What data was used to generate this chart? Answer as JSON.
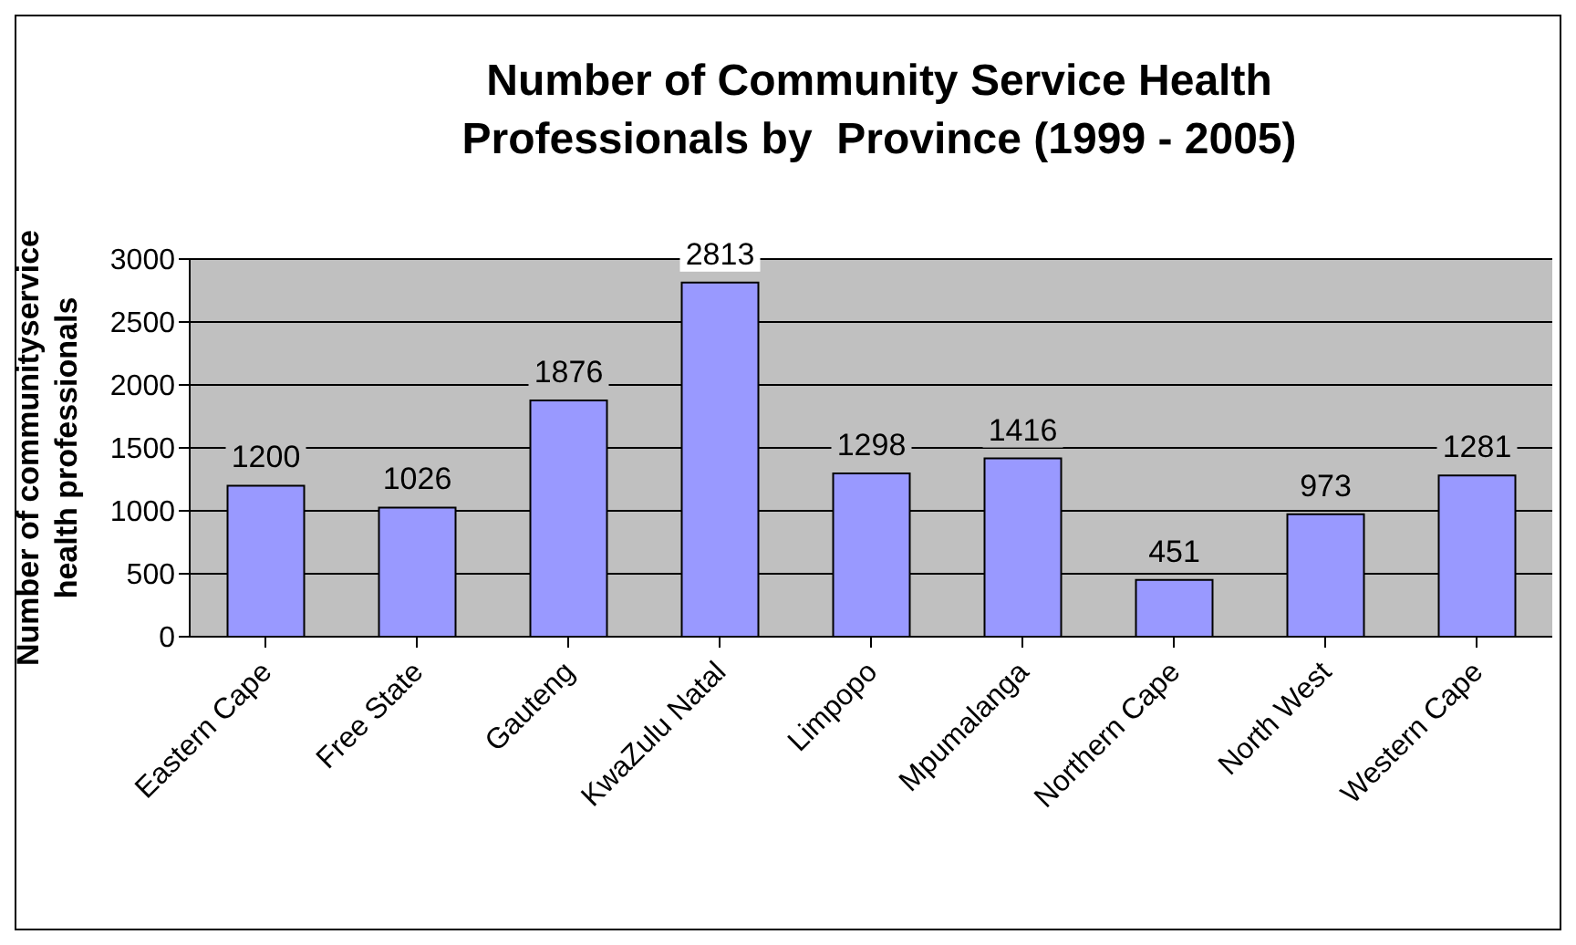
{
  "chart_data": {
    "type": "bar",
    "title": "Number of Community Service Health\nProfessionals by  Province (1999 - 2005)",
    "ylabel": "Number of communityservice\nhealth professionals",
    "categories": [
      "Eastern Cape",
      "Free State",
      "Gauteng",
      "KwaZulu Natal",
      "Limpopo",
      "Mpumalanga",
      "Northern Cape",
      "North West",
      "Western Cape"
    ],
    "values": [
      1200,
      1026,
      1876,
      2813,
      1298,
      1416,
      451,
      973,
      1281
    ],
    "color": "#9999ff",
    "ylim": [
      0,
      3000
    ],
    "yticks": [
      0,
      500,
      1000,
      1500,
      2000,
      2500,
      3000
    ],
    "grid": "y",
    "data_labels": true
  }
}
